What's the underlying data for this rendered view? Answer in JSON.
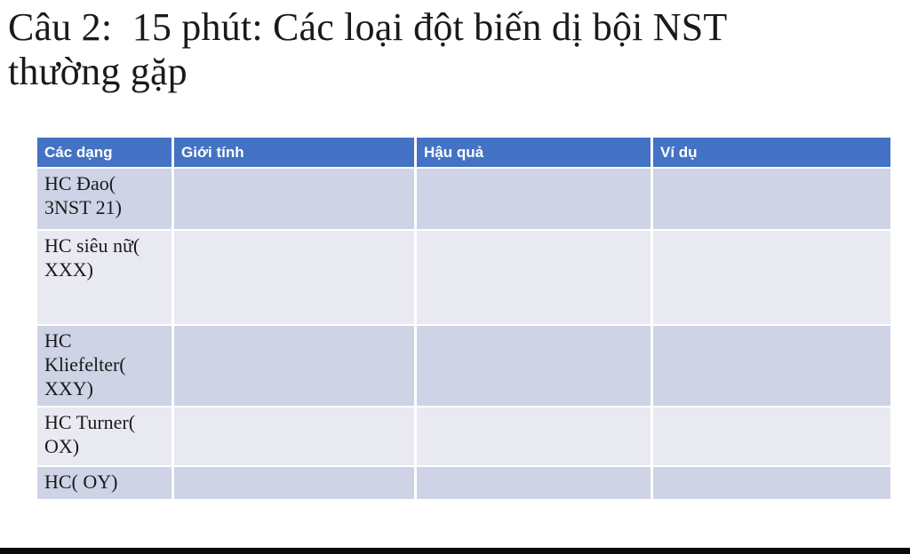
{
  "slide": {
    "title": "Câu 2:  15 phút: Các loại đột biến dị bội NST\nthường gặp"
  },
  "table": {
    "headers": [
      "Các dạng",
      "Giới tính",
      "Hậu quả",
      "Ví dụ"
    ],
    "rows": [
      {
        "label": "HC Đao(\n3NST 21)",
        "cells": [
          "",
          "",
          ""
        ]
      },
      {
        "label": "HC siêu nữ(\nXXX)",
        "cells": [
          "",
          "",
          ""
        ]
      },
      {
        "label": "HC\nKliefelter(\nXXY)",
        "cells": [
          "",
          "",
          ""
        ]
      },
      {
        "label": "HC Turner(\nOX)",
        "cells": [
          "",
          "",
          ""
        ]
      },
      {
        "label": "HC( OY)",
        "cells": [
          "",
          "",
          ""
        ]
      }
    ]
  },
  "colors": {
    "background": "#ffffff",
    "header_bg": "#4472c4",
    "header_text": "#ffffff",
    "row_dark": "#ced3e6",
    "row_light": "#e9e9f2",
    "text": "#1a1a1a",
    "bottom_bar": "#0a0a0a"
  }
}
